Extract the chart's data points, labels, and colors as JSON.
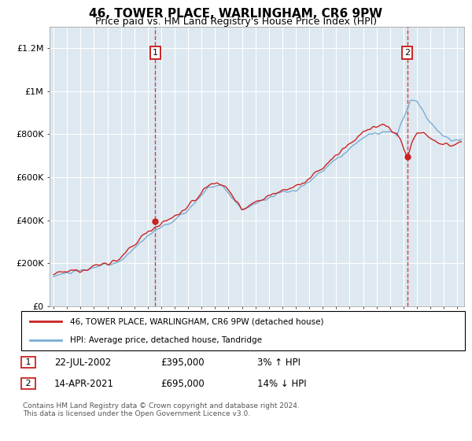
{
  "title": "46, TOWER PLACE, WARLINGHAM, CR6 9PW",
  "subtitle": "Price paid vs. HM Land Registry's House Price Index (HPI)",
  "ylabel_ticks": [
    "£0",
    "£200K",
    "£400K",
    "£600K",
    "£800K",
    "£1M",
    "£1.2M"
  ],
  "ytick_values": [
    0,
    200000,
    400000,
    600000,
    800000,
    1000000,
    1200000
  ],
  "ylim": [
    0,
    1300000
  ],
  "xlim_start": 1994.7,
  "xlim_end": 2025.5,
  "sale1_year": 2002.55,
  "sale1_price": 395000,
  "sale1_label": "1",
  "sale1_date": "22-JUL-2002",
  "sale1_hpi": "3% ↑ HPI",
  "sale2_year": 2021.28,
  "sale2_price": 695000,
  "sale2_label": "2",
  "sale2_date": "14-APR-2021",
  "sale2_hpi": "14% ↓ HPI",
  "hpi_color": "#7aadd4",
  "price_color": "#cc2222",
  "dashed_color": "#cc2222",
  "bg_color": "#dde8f0",
  "plot_bg": "#dde8f0",
  "grid_color": "#ffffff",
  "legend1": "46, TOWER PLACE, WARLINGHAM, CR6 9PW (detached house)",
  "legend2": "HPI: Average price, detached house, Tandridge",
  "footnote": "Contains HM Land Registry data © Crown copyright and database right 2024.\nThis data is licensed under the Open Government Licence v3.0.",
  "title_fontsize": 11,
  "subtitle_fontsize": 9
}
